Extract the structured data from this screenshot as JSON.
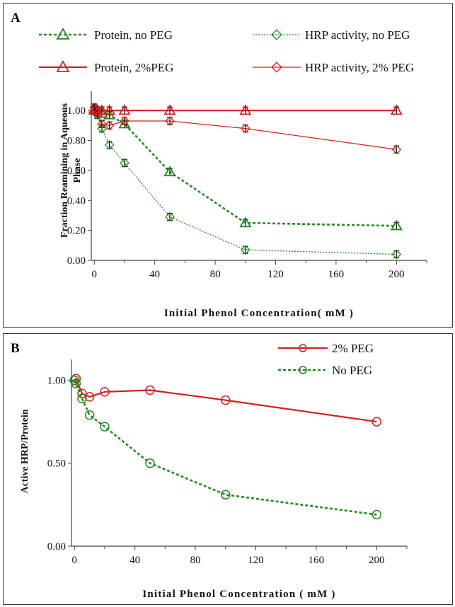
{
  "colors": {
    "green": "#1e8c1e",
    "red": "#d62020",
    "axis": "#444444"
  },
  "chart_data": [
    {
      "panel_label": "A",
      "type": "line",
      "xlabel": "Initial Phenol Concentration( mM )",
      "ylabel": "Fraction Reamining in Aqueous Phase",
      "xlim": [
        -2,
        220
      ],
      "ylim": [
        0,
        1.1
      ],
      "xticks": [
        0,
        40,
        80,
        120,
        160,
        200
      ],
      "yticks": [
        0,
        0.2,
        0.4,
        0.6,
        0.8,
        1.0
      ],
      "ytick_labels": [
        "0.00",
        "0.20",
        "0.40",
        "0.60",
        "0.80",
        "1.00"
      ],
      "grid": false,
      "legend_position": "top",
      "series": [
        {
          "name": "Protein, no PEG",
          "color": "#1e8c1e",
          "dash": "dotted-bold",
          "marker": "triangle",
          "x": [
            0,
            1,
            2,
            5,
            10,
            20,
            50,
            100,
            200
          ],
          "y": [
            1.0,
            1.0,
            1.0,
            0.98,
            0.97,
            0.91,
            0.59,
            0.25,
            0.23
          ]
        },
        {
          "name": "HRP activity, no PEG",
          "color": "#1e8c1e",
          "dash": "dotted-thin",
          "marker": "diamond",
          "x": [
            0,
            1,
            2,
            5,
            10,
            20,
            50,
            100,
            200
          ],
          "y": [
            1.0,
            0.99,
            0.97,
            0.88,
            0.77,
            0.65,
            0.29,
            0.07,
            0.04
          ]
        },
        {
          "name": "Protein,  2%PEG",
          "color": "#d62020",
          "dash": "solid-bold",
          "marker": "triangle",
          "x": [
            0,
            1,
            2,
            5,
            10,
            20,
            50,
            100,
            200
          ],
          "y": [
            1.01,
            1.01,
            1.0,
            1.0,
            1.0,
            1.0,
            1.0,
            1.0,
            1.0
          ]
        },
        {
          "name": "HRP activity, 2% PEG",
          "color": "#d62020",
          "dash": "solid-thin",
          "marker": "diamond",
          "x": [
            0,
            1,
            2,
            5,
            10,
            20,
            50,
            100,
            200
          ],
          "y": [
            1.02,
            1.0,
            0.98,
            0.91,
            0.9,
            0.93,
            0.93,
            0.88,
            0.74
          ]
        }
      ]
    },
    {
      "panel_label": "B",
      "type": "line",
      "xlabel": "Initial Phenol Concentration ( mM )",
      "ylabel": "Active HRP/Protein",
      "xlim": [
        -2,
        220
      ],
      "ylim": [
        0,
        1.1
      ],
      "xticks": [
        0,
        40,
        80,
        120,
        160,
        200
      ],
      "yticks": [
        0,
        0.5,
        1.0
      ],
      "ytick_labels": [
        "0.00",
        "0.50",
        "1.00"
      ],
      "grid": false,
      "legend_position": "top-right",
      "series": [
        {
          "name": "2% PEG",
          "color": "#d62020",
          "dash": "solid-bold",
          "marker": "circle",
          "x": [
            0,
            1,
            5,
            10,
            20,
            50,
            100,
            200
          ],
          "y": [
            1.0,
            1.01,
            0.92,
            0.9,
            0.93,
            0.94,
            0.88,
            0.75
          ]
        },
        {
          "name": "No PEG",
          "color": "#1e8c1e",
          "dash": "dotted-bold",
          "marker": "circle",
          "x": [
            0,
            1,
            5,
            10,
            20,
            50,
            100,
            200
          ],
          "y": [
            1.0,
            0.98,
            0.89,
            0.79,
            0.72,
            0.5,
            0.31,
            0.19
          ]
        }
      ]
    }
  ]
}
